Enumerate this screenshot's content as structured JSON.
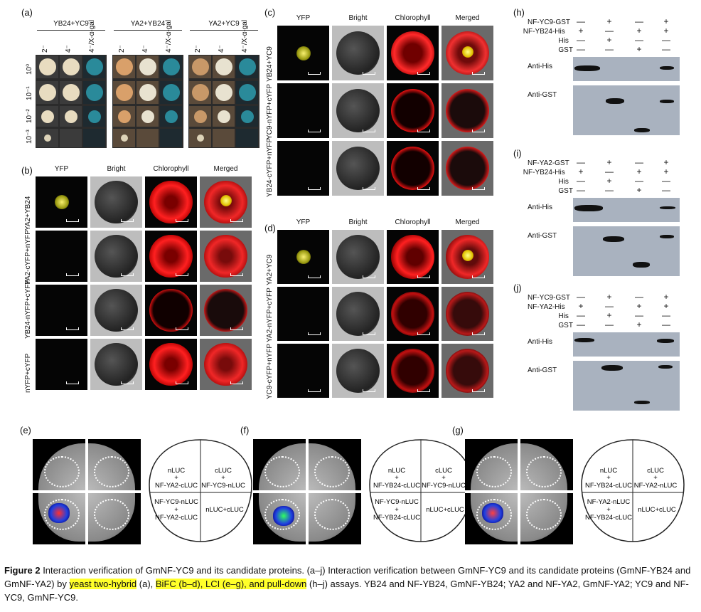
{
  "panels": {
    "a": {
      "label": "(a)",
      "groups": [
        "YB24+YC9",
        "YA2+YB24",
        "YA2+YC9"
      ],
      "cols": [
        "2⁻",
        "4⁻",
        "4⁻/X-α-gal"
      ],
      "rows": [
        "10⁰",
        "10⁻¹",
        "10⁻²",
        "10⁻³"
      ]
    },
    "b": {
      "label": "(b)",
      "cols": [
        "YFP",
        "Bright",
        "Chlorophyll",
        "Merged"
      ],
      "rows": [
        "YA2+YB24",
        "YA2-cYFP+nYFP",
        "YB24-nYFP+cYFP",
        "nYFP+cYFP"
      ]
    },
    "c": {
      "label": "(c)",
      "cols": [
        "YFP",
        "Bright",
        "Chlorophyll",
        "Merged"
      ],
      "rows": [
        "YB24+YC9",
        "YC9-nYFP+cYFP",
        "YB24-cYFP+nYFP"
      ]
    },
    "d": {
      "label": "(d)",
      "cols": [
        "YFP",
        "Bright",
        "Chlorophyll",
        "Merged"
      ],
      "rows": [
        "YA2+YC9",
        "YA2-nYFP+cYFP",
        "YC9-cYFP+nYFP"
      ]
    },
    "h": {
      "label": "(h)",
      "rows": [
        {
          "name": "NF-YC9-GST",
          "signs": [
            "—",
            "+",
            "—",
            "+"
          ]
        },
        {
          "name": "NF-YB24-His",
          "signs": [
            "+",
            "—",
            "+",
            "+"
          ]
        },
        {
          "name": "His",
          "signs": [
            "—",
            "+",
            "—",
            "—"
          ]
        },
        {
          "name": "GST",
          "signs": [
            "—",
            "—",
            "+",
            "—"
          ]
        }
      ],
      "blots": [
        "Anti-His",
        "Anti-GST"
      ]
    },
    "i": {
      "label": "(i)",
      "rows": [
        {
          "name": "NF-YA2-GST",
          "signs": [
            "—",
            "+",
            "—",
            "+"
          ]
        },
        {
          "name": "NF-YB24-His",
          "signs": [
            "+",
            "—",
            "+",
            "+"
          ]
        },
        {
          "name": "His",
          "signs": [
            "—",
            "+",
            "—",
            "—"
          ]
        },
        {
          "name": "GST",
          "signs": [
            "—",
            "—",
            "+",
            "—"
          ]
        }
      ],
      "blots": [
        "Anti-His",
        "Anti-GST"
      ]
    },
    "j": {
      "label": "(j)",
      "rows": [
        {
          "name": "NF-YC9-GST",
          "signs": [
            "—",
            "+",
            "—",
            "+"
          ]
        },
        {
          "name": "NF-YA2-His",
          "signs": [
            "+",
            "—",
            "+",
            "+"
          ]
        },
        {
          "name": "His",
          "signs": [
            "—",
            "+",
            "—",
            "—"
          ]
        },
        {
          "name": "GST",
          "signs": [
            "—",
            "—",
            "+",
            "—"
          ]
        }
      ],
      "blots": [
        "Anti-His",
        "Anti-GST"
      ]
    },
    "e": {
      "label": "(e)",
      "tl1": "nLUC",
      "tl2": "+",
      "tl3": "NF-YA2-cLUC",
      "tr1": "cLUC",
      "tr2": "+",
      "tr3": "NF-YC9-nLUC",
      "bl1": "NF-YC9-nLUC",
      "bl2": "+",
      "bl3": "NF-YA2-cLUC",
      "br": "nLUC+cLUC"
    },
    "f": {
      "label": "(f)",
      "tl1": "nLUC",
      "tl2": "+",
      "tl3": "NF-YB24-cLUC",
      "tr1": "cLUC",
      "tr2": "+",
      "tr3": "NF-YC9-nLUC",
      "bl1": "NF-YC9-nLUC",
      "bl2": "+",
      "bl3": "NF-YB24-cLUC",
      "br": "nLUC+cLUC"
    },
    "g": {
      "label": "(g)",
      "tl1": "nLUC",
      "tl2": "+",
      "tl3": "NF-YB24-cLUC",
      "tr1": "cLUC",
      "tr2": "+",
      "tr3": "NF-YA2-nLUC",
      "bl1": "NF-YA2-nLUC",
      "bl2": "+",
      "bl3": "NF-YB24-cLUC",
      "br": "nLUC+cLUC"
    }
  },
  "caption": {
    "bold": "Figure 2",
    "t1": "  Interaction verification of GmNF-YC9 and its candidate proteins. (a–j) Interaction verification between GmNF-YC9 and its candidate proteins (GmNF-YB24 and GmNF-YA2) by ",
    "h1": "yeast two-hybrid",
    "t2": " (a), ",
    "h2": "BiFC (b–d), LCI (e–g), and pull-down",
    "t3": " (h–j) assays. YB24 and NF-YB24, GmNF-YB24; YA2 and NF-YA2, GmNF-YA2; YC9 and NF-YC9, GmNF-YC9."
  }
}
